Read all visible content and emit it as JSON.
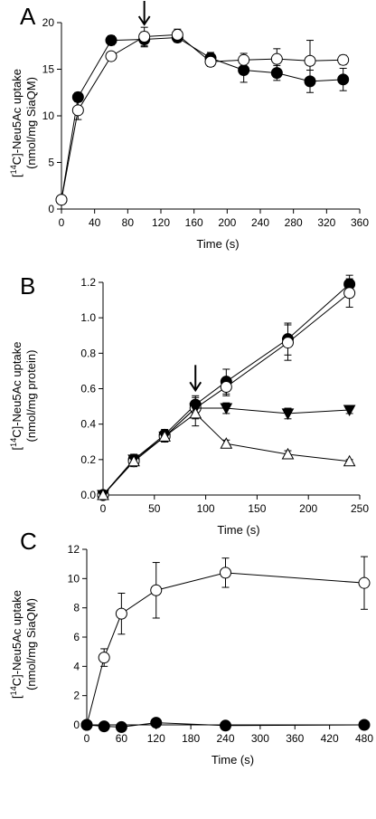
{
  "chart_data": [
    {
      "panel": "A",
      "type": "scatter",
      "ylabel_line1": "-Neu5Ac uptake",
      "ylabel_sup": "14",
      "ylabel_prefix": "[",
      "ylabel_c": "C]",
      "ylabel_line2": "(nmol/mg SiaQM)",
      "xlabel": "Time (s)",
      "xlim": [
        0,
        360
      ],
      "ylim": [
        0,
        20
      ],
      "xticks": [
        0,
        40,
        80,
        120,
        160,
        200,
        240,
        280,
        320,
        360
      ],
      "yticks": [
        0,
        5,
        10,
        15,
        20
      ],
      "arrow_x": 100,
      "series": [
        {
          "marker": "circle",
          "fill": "#000000",
          "x": [
            0,
            20,
            60,
            100,
            140,
            180,
            220,
            260,
            300,
            340
          ],
          "y": [
            1.0,
            12.0,
            18.1,
            18.2,
            18.4,
            16.2,
            14.9,
            14.6,
            13.7,
            13.9
          ],
          "err": [
            0.2,
            0.5,
            0.5,
            0.8,
            0.5,
            0.6,
            1.3,
            0.8,
            1.2,
            1.2
          ]
        },
        {
          "marker": "circle",
          "fill": "#ffffff",
          "x": [
            0,
            20,
            60,
            100,
            140,
            180,
            220,
            260,
            300,
            340
          ],
          "y": [
            1.0,
            10.6,
            16.4,
            18.5,
            18.7,
            15.8,
            16.0,
            16.1,
            15.9,
            16.0
          ],
          "err": [
            0.2,
            1.0,
            0.4,
            1.0,
            0.6,
            0.5,
            0.7,
            1.1,
            2.2,
            0.5
          ]
        }
      ]
    },
    {
      "panel": "B",
      "type": "scatter",
      "ylabel_line1": "-Neu5Ac uptake",
      "ylabel_sup": "14",
      "ylabel_prefix": "[",
      "ylabel_c": "C]",
      "ylabel_line2": "(nmol/mg protein)",
      "xlabel": "Time (s)",
      "xlim": [
        0,
        250
      ],
      "ylim": [
        0,
        1.2
      ],
      "xticks": [
        0,
        50,
        100,
        150,
        200,
        250
      ],
      "yticks": [
        0.0,
        0.2,
        0.4,
        0.6,
        0.8,
        1.0,
        1.2
      ],
      "yticklabels": [
        "0.0",
        "0.2",
        "0.4",
        "0.6",
        "0.8",
        "1.0",
        "1.2"
      ],
      "arrow_x": 90,
      "series": [
        {
          "marker": "circle",
          "fill": "#000000",
          "x": [
            0,
            30,
            60,
            90,
            120,
            180,
            240
          ],
          "y": [
            0.0,
            0.2,
            0.34,
            0.51,
            0.64,
            0.88,
            1.19
          ],
          "err": [
            0.01,
            0.03,
            0.03,
            0.05,
            0.07,
            0.09,
            0.05
          ]
        },
        {
          "marker": "circle",
          "fill": "#ffffff",
          "x": [
            0,
            30,
            60,
            90,
            120,
            180,
            240
          ],
          "y": [
            0.0,
            0.19,
            0.33,
            0.49,
            0.61,
            0.86,
            1.14
          ],
          "err": [
            0.01,
            0.03,
            0.03,
            0.06,
            0.05,
            0.1,
            0.08
          ]
        },
        {
          "marker": "triangle-down",
          "fill": "#000000",
          "x": [
            0,
            30,
            60,
            90,
            120,
            180,
            240
          ],
          "y": [
            0.0,
            0.2,
            0.33,
            0.49,
            0.49,
            0.46,
            0.48
          ],
          "err": [
            0.01,
            0.02,
            0.03,
            0.04,
            0.03,
            0.03,
            0.02
          ]
        },
        {
          "marker": "triangle-up",
          "fill": "#ffffff",
          "x": [
            0,
            30,
            60,
            90,
            120,
            180,
            240
          ],
          "y": [
            0.0,
            0.19,
            0.33,
            0.46,
            0.29,
            0.23,
            0.19
          ],
          "err": [
            0.01,
            0.02,
            0.03,
            0.07,
            0.02,
            0.02,
            0.01
          ]
        }
      ]
    },
    {
      "panel": "C",
      "type": "scatter",
      "ylabel_line1": "-Neu5Ac uptake",
      "ylabel_sup": "14",
      "ylabel_prefix": "[",
      "ylabel_c": "C]",
      "ylabel_line2": "(nmol/mg SiaQM)",
      "xlabel": "Time (s)",
      "xlim": [
        0,
        480
      ],
      "ylim": [
        0,
        12
      ],
      "xticks": [
        0,
        60,
        120,
        180,
        240,
        300,
        360,
        420,
        480
      ],
      "yticks": [
        0,
        2,
        4,
        6,
        8,
        10,
        12
      ],
      "series": [
        {
          "marker": "circle",
          "fill": "#ffffff",
          "x": [
            0,
            30,
            60,
            120,
            240,
            480
          ],
          "y": [
            0.0,
            4.6,
            7.6,
            9.2,
            10.4,
            9.7
          ],
          "err": [
            0.1,
            0.6,
            1.4,
            1.9,
            1.0,
            1.8
          ]
        },
        {
          "marker": "circle",
          "fill": "#000000",
          "x": [
            0,
            30,
            60,
            120,
            240,
            480
          ],
          "y": [
            0.0,
            -0.1,
            -0.15,
            0.15,
            -0.05,
            0.0
          ],
          "err": [
            0.05,
            0.05,
            0.05,
            0.1,
            0.05,
            0.05
          ]
        }
      ]
    }
  ]
}
